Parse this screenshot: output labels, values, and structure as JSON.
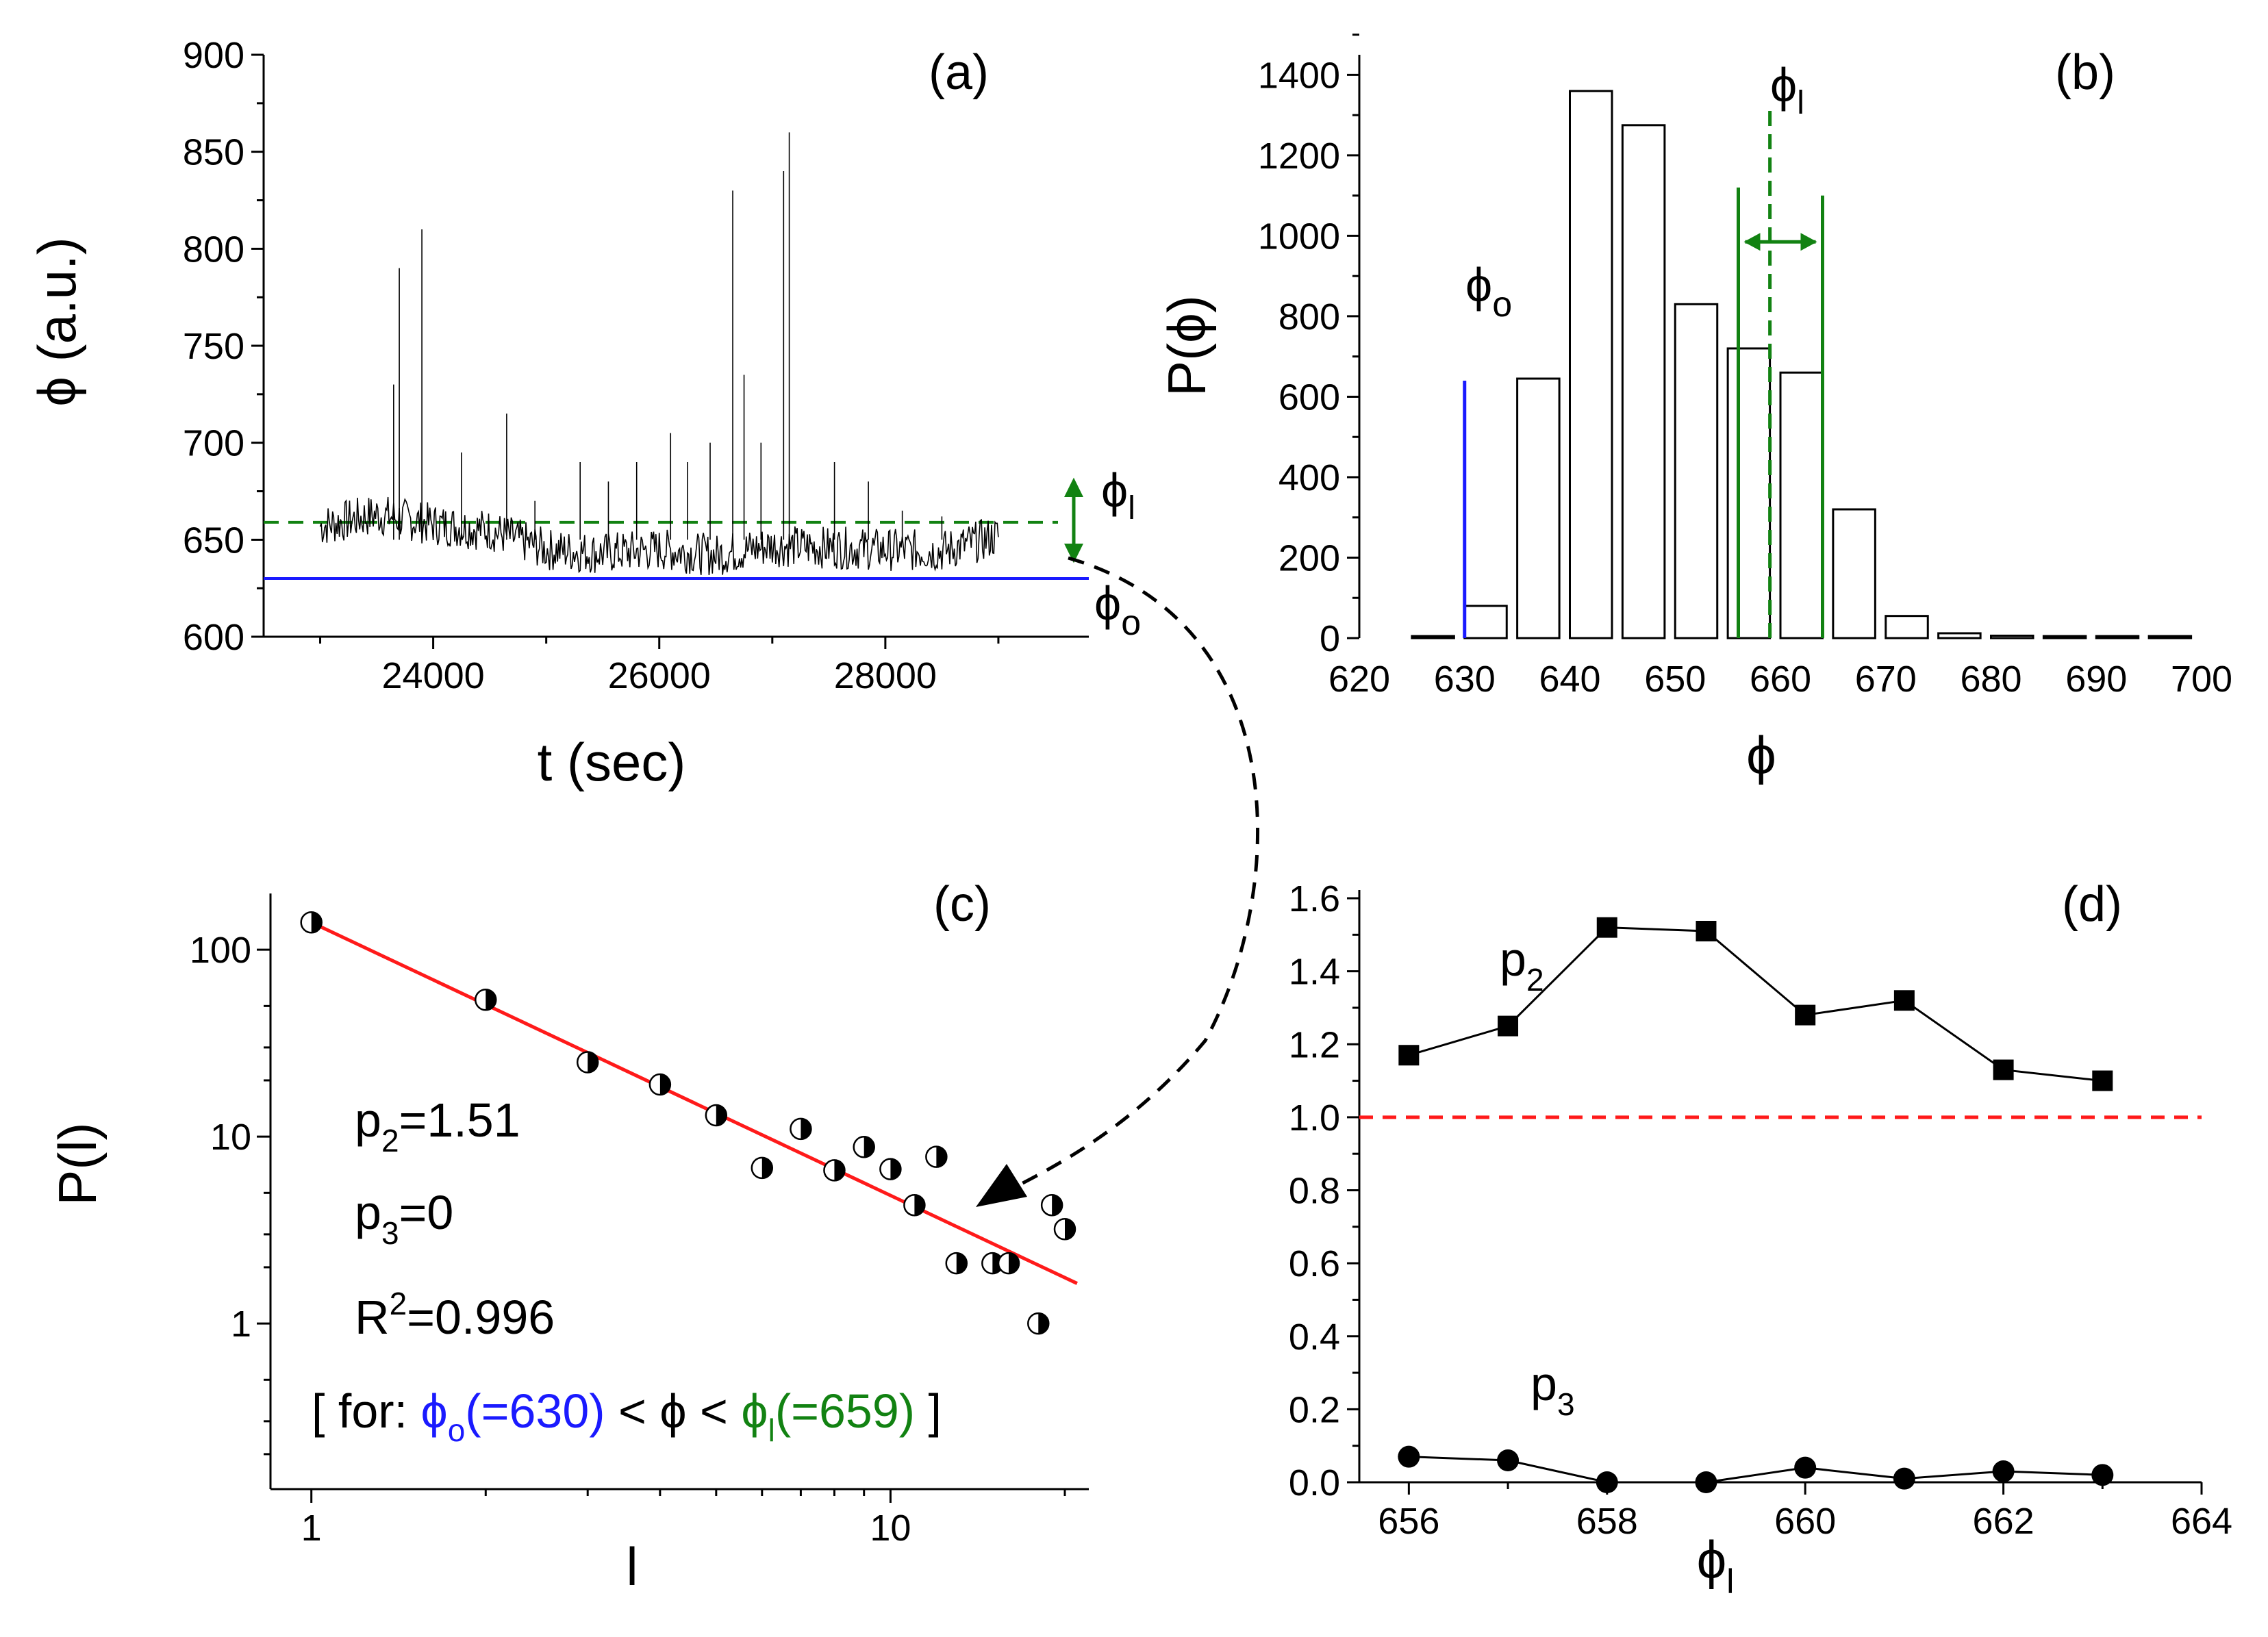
{
  "colors": {
    "blue": "#1a1aff",
    "green": "#128212",
    "red": "#ff1a1a",
    "black": "#000000"
  },
  "chart_data": [
    {
      "id": "a",
      "type": "line",
      "tag": "(a)",
      "xlabel": "t (sec)",
      "ylabel": "ϕ (a.u.)",
      "xlim": [
        22500,
        29800
      ],
      "ylim": [
        600,
        900
      ],
      "yticks": [
        600,
        650,
        700,
        750,
        800,
        850,
        900
      ],
      "xticks": [
        24000,
        26000,
        28000
      ],
      "baseline_segments": [
        [
          23000,
          657
        ],
        [
          23500,
          663
        ],
        [
          24000,
          658
        ],
        [
          24500,
          655
        ],
        [
          25000,
          645
        ],
        [
          25500,
          643
        ],
        [
          26000,
          645
        ],
        [
          26500,
          642
        ],
        [
          27000,
          647
        ],
        [
          27500,
          646
        ],
        [
          28000,
          645
        ],
        [
          28500,
          644
        ],
        [
          29000,
          652
        ]
      ],
      "spikes": [
        [
          23650,
          730
        ],
        [
          23700,
          790
        ],
        [
          23900,
          810
        ],
        [
          24250,
          695
        ],
        [
          24650,
          715
        ],
        [
          24900,
          670
        ],
        [
          25300,
          690
        ],
        [
          25550,
          680
        ],
        [
          25800,
          690
        ],
        [
          26100,
          705
        ],
        [
          26250,
          690
        ],
        [
          26450,
          700
        ],
        [
          26650,
          830
        ],
        [
          26750,
          735
        ],
        [
          26900,
          700
        ],
        [
          27100,
          840
        ],
        [
          27150,
          860
        ],
        [
          27550,
          690
        ],
        [
          27850,
          680
        ],
        [
          28150,
          665
        ],
        [
          28500,
          662
        ]
      ],
      "phi_o_value": 630,
      "phi_l_value": 659,
      "phi_o_label": "ϕ",
      "phi_o_sub": "o",
      "phi_l_label": "ϕ",
      "phi_l_sub": "l"
    },
    {
      "id": "b",
      "type": "bar",
      "tag": "(b)",
      "xlabel": "ϕ",
      "ylabel": "P(ϕ)",
      "xlim": [
        620,
        700
      ],
      "ylim": [
        0,
        1450
      ],
      "xticks": [
        620,
        630,
        640,
        650,
        660,
        670,
        680,
        690,
        700
      ],
      "yticks": [
        0,
        200,
        400,
        600,
        800,
        1000,
        1200,
        1400
      ],
      "bin_width": 4,
      "bin_centers": [
        627,
        632,
        637,
        642,
        647,
        652,
        657,
        662,
        667,
        672,
        677,
        682,
        687,
        692,
        697
      ],
      "values": [
        5,
        80,
        645,
        1360,
        1275,
        830,
        720,
        660,
        320,
        55,
        12,
        6,
        5,
        5,
        5
      ],
      "phi_o_value": 630,
      "phi_o_label": "ϕ",
      "phi_o_sub": "o",
      "phi_l_value": 659,
      "phi_l_label": "ϕ",
      "phi_l_sub": "l",
      "band": [
        656,
        664
      ]
    },
    {
      "id": "c",
      "type": "scatter",
      "tag": "(c)",
      "xlabel": "l",
      "ylabel": "P(l)",
      "xscale": "log",
      "yscale": "log",
      "xlim": [
        0.85,
        22
      ],
      "ylim": [
        0.13,
        200
      ],
      "xticks": [
        1,
        10
      ],
      "yticks": [
        1,
        10,
        100
      ],
      "points": [
        [
          1,
          140
        ],
        [
          2,
          54
        ],
        [
          3,
          25
        ],
        [
          4,
          19
        ],
        [
          5,
          13
        ],
        [
          6,
          6.8
        ],
        [
          7,
          11
        ],
        [
          8,
          6.6
        ],
        [
          9,
          8.8
        ],
        [
          10,
          6.7
        ],
        [
          11,
          4.3
        ],
        [
          12,
          7.8
        ],
        [
          13,
          2.1
        ],
        [
          15,
          2.1
        ],
        [
          16,
          2.1
        ],
        [
          18,
          1
        ],
        [
          19,
          4.3
        ],
        [
          20,
          3.2
        ]
      ],
      "fit": {
        "x": [
          1,
          20
        ],
        "y": [
          140,
          1.76
        ]
      },
      "p2_label": "p",
      "p2_sub": "2",
      "p2_value": "=1.51",
      "p3_label": "p",
      "p3_sub": "3",
      "p3_value": "=0",
      "r2_label": "R",
      "r2_sup": "2",
      "r2_value": "=0.996",
      "cond_open": "[ for: ",
      "cond_phi_o": "ϕ",
      "cond_o_sub": "o",
      "cond_o_val": "(=630)",
      "cond_mid": " < ϕ < ",
      "cond_phi_l": "ϕ",
      "cond_l_sub": "l",
      "cond_l_val": "(=659)",
      "cond_close": " ]"
    },
    {
      "id": "d",
      "type": "line",
      "tag": "(d)",
      "xlabel": "ϕ",
      "xlabel_sub": "l",
      "xlim": [
        655.5,
        664
      ],
      "ylim": [
        0,
        1.6
      ],
      "xticks": [
        656,
        658,
        660,
        662,
        664
      ],
      "yticks": [
        "0.0",
        "0.2",
        "0.4",
        "0.6",
        "0.8",
        "1.0",
        "1.2",
        "1.4",
        "1.6"
      ],
      "series": [
        {
          "name": "p",
          "sub": "2",
          "x": [
            656,
            657,
            658,
            659,
            660,
            661,
            662,
            663
          ],
          "values": [
            1.17,
            1.25,
            1.52,
            1.51,
            1.28,
            1.32,
            1.13,
            1.1
          ]
        },
        {
          "name": "p",
          "sub": "3",
          "x": [
            656,
            657,
            658,
            659,
            660,
            661,
            662,
            663
          ],
          "values": [
            0.07,
            0.06,
            0.0,
            0.0,
            0.04,
            0.01,
            0.03,
            0.02
          ]
        }
      ],
      "reference_line": 1.0
    }
  ]
}
